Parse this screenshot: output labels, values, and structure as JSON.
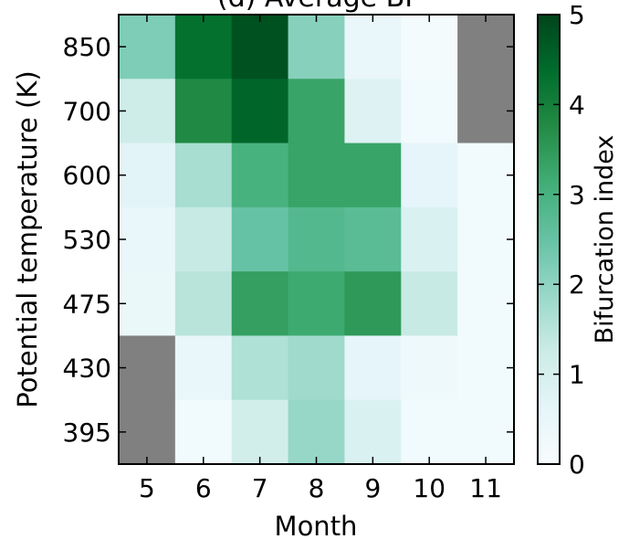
{
  "chart_data": {
    "type": "heatmap",
    "title": "(d) Average BI",
    "xlabel": "Month",
    "ylabel": "Potential temperature (K)",
    "x": [
      "5",
      "6",
      "7",
      "8",
      "9",
      "10",
      "11"
    ],
    "y": [
      "850",
      "700",
      "600",
      "530",
      "475",
      "430",
      "395"
    ],
    "values": [
      [
        2.2,
        4.3,
        4.8,
        2.1,
        0.5,
        0.1,
        null
      ],
      [
        1.2,
        3.8,
        4.5,
        3.3,
        0.8,
        0.2,
        null
      ],
      [
        0.7,
        1.7,
        3.0,
        3.3,
        3.3,
        0.6,
        0.2
      ],
      [
        0.5,
        1.3,
        2.5,
        2.8,
        2.7,
        0.9,
        0.2
      ],
      [
        0.4,
        1.5,
        3.4,
        3.2,
        3.5,
        1.3,
        0.2
      ],
      [
        null,
        0.5,
        1.6,
        1.8,
        0.6,
        0.3,
        0.2
      ],
      [
        null,
        0.2,
        1.1,
        1.9,
        0.9,
        0.2,
        0.2
      ]
    ],
    "missing_color": "#808080",
    "colorbar": {
      "label": "Bifurcation index",
      "range": [
        0,
        5
      ],
      "ticks": [
        "0",
        "1",
        "2",
        "3",
        "4",
        "5"
      ],
      "colormap": "Greens",
      "colors": [
        "#f7fcfd",
        "#e5f5f9",
        "#ccece6",
        "#99d8c9",
        "#66c2a4",
        "#41ae76",
        "#238b45",
        "#006d2c",
        "#00441b"
      ]
    },
    "grid": false
  }
}
